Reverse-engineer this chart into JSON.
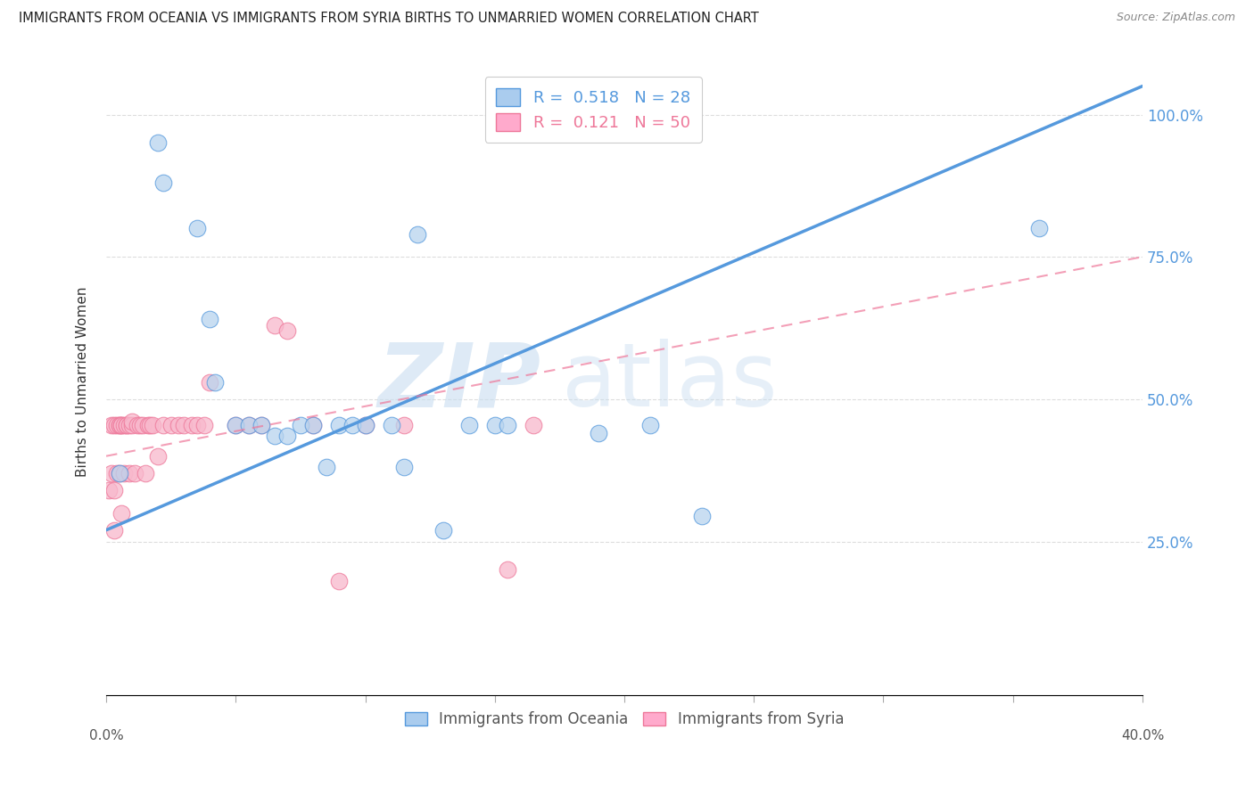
{
  "title": "IMMIGRANTS FROM OCEANIA VS IMMIGRANTS FROM SYRIA BIRTHS TO UNMARRIED WOMEN CORRELATION CHART",
  "source": "Source: ZipAtlas.com",
  "ylabel": "Births to Unmarried Women",
  "xlim": [
    0.0,
    0.4
  ],
  "ylim": [
    -0.02,
    1.08
  ],
  "watermark_zip": "ZIP",
  "watermark_atlas": "atlas",
  "blue_color": "#b8d4ee",
  "pink_color": "#f8b8cc",
  "blue_line_color": "#5599dd",
  "pink_line_color": "#ee7799",
  "blue_fill_color": "#aaccee",
  "pink_fill_color": "#ffaacc",
  "oceania_points_x": [
    0.005,
    0.02,
    0.022,
    0.035,
    0.04,
    0.042,
    0.05,
    0.055,
    0.06,
    0.065,
    0.07,
    0.075,
    0.08,
    0.085,
    0.09,
    0.095,
    0.1,
    0.11,
    0.115,
    0.12,
    0.13,
    0.14,
    0.15,
    0.155,
    0.19,
    0.21,
    0.23,
    0.36
  ],
  "oceania_points_y": [
    0.37,
    0.95,
    0.88,
    0.8,
    0.64,
    0.53,
    0.455,
    0.455,
    0.455,
    0.435,
    0.435,
    0.455,
    0.455,
    0.38,
    0.455,
    0.455,
    0.455,
    0.455,
    0.38,
    0.79,
    0.27,
    0.455,
    0.455,
    0.455,
    0.44,
    0.455,
    0.295,
    0.8
  ],
  "syria_points_x": [
    0.001,
    0.002,
    0.002,
    0.003,
    0.003,
    0.003,
    0.004,
    0.004,
    0.005,
    0.005,
    0.005,
    0.006,
    0.006,
    0.006,
    0.007,
    0.007,
    0.008,
    0.008,
    0.009,
    0.009,
    0.01,
    0.01,
    0.011,
    0.012,
    0.013,
    0.014,
    0.015,
    0.016,
    0.017,
    0.018,
    0.02,
    0.022,
    0.025,
    0.028,
    0.03,
    0.033,
    0.035,
    0.038,
    0.04,
    0.05,
    0.055,
    0.06,
    0.065,
    0.07,
    0.08,
    0.09,
    0.1,
    0.115,
    0.155,
    0.165
  ],
  "syria_points_y": [
    0.34,
    0.455,
    0.37,
    0.455,
    0.34,
    0.27,
    0.455,
    0.37,
    0.455,
    0.455,
    0.37,
    0.455,
    0.455,
    0.3,
    0.455,
    0.37,
    0.455,
    0.455,
    0.455,
    0.37,
    0.455,
    0.46,
    0.37,
    0.455,
    0.455,
    0.455,
    0.37,
    0.455,
    0.455,
    0.455,
    0.4,
    0.455,
    0.455,
    0.455,
    0.455,
    0.455,
    0.455,
    0.455,
    0.53,
    0.455,
    0.455,
    0.455,
    0.63,
    0.62,
    0.455,
    0.18,
    0.455,
    0.455,
    0.2,
    0.455
  ],
  "blue_line_x": [
    0.0,
    0.4
  ],
  "blue_line_y": [
    0.27,
    1.05
  ],
  "pink_line_x": [
    0.0,
    0.4
  ],
  "pink_line_y": [
    0.4,
    0.75
  ],
  "y_tick_positions": [
    0.25,
    0.5,
    0.75,
    1.0
  ],
  "y_tick_labels": [
    "25.0%",
    "50.0%",
    "75.0%",
    "100.0%"
  ]
}
